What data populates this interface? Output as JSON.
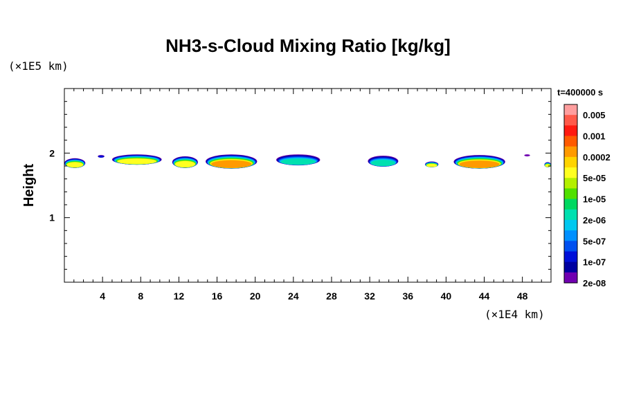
{
  "chart_data": {
    "type": "heatmap",
    "title": "NH3-s-Cloud Mixing Ratio [kg/kg]",
    "xlabel": "",
    "ylabel": "Height",
    "x_unit": "(×1E4 km)",
    "y_unit": "(×1E5 km)",
    "time_label": "t=400000 s",
    "xlim": [
      0,
      51
    ],
    "ylim": [
      0,
      3
    ],
    "x_ticks": [
      4,
      8,
      12,
      16,
      20,
      24,
      28,
      32,
      36,
      40,
      44,
      48
    ],
    "y_ticks": [
      1,
      2
    ],
    "colorbar": {
      "labels": [
        "0.005",
        "0.001",
        "0.0002",
        "5e-05",
        "1e-05",
        "2e-06",
        "5e-07",
        "1e-07",
        "2e-08"
      ],
      "colors": [
        "#ff9e9e",
        "#ff5a4a",
        "#ff1a10",
        "#ff5a00",
        "#ff9a00",
        "#ffd400",
        "#ffff20",
        "#b4f000",
        "#50e000",
        "#00d860",
        "#00e0b0",
        "#00c8f0",
        "#0090ff",
        "#0050f0",
        "#0010d8",
        "#0000a0",
        "#7000b0"
      ]
    },
    "cloud_patches": [
      {
        "x": [
          0,
          2.2
        ],
        "y": [
          1.77,
          1.92
        ],
        "max": 5e-05
      },
      {
        "x": [
          3.5,
          4.2
        ],
        "y": [
          1.93,
          1.97
        ],
        "max": 1e-07
      },
      {
        "x": [
          5,
          10.2
        ],
        "y": [
          1.82,
          1.98
        ],
        "max": 5e-05
      },
      {
        "x": [
          11.3,
          14
        ],
        "y": [
          1.77,
          1.95
        ],
        "max": 5e-05
      },
      {
        "x": [
          14.8,
          20.2
        ],
        "y": [
          1.76,
          1.98
        ],
        "max": 0.0002
      },
      {
        "x": [
          22.2,
          26.8
        ],
        "y": [
          1.81,
          1.98
        ],
        "max": 2e-06
      },
      {
        "x": [
          31.8,
          35
        ],
        "y": [
          1.79,
          1.96
        ],
        "max": 2e-06
      },
      {
        "x": [
          37.8,
          39.2
        ],
        "y": [
          1.78,
          1.87
        ],
        "max": 5e-05
      },
      {
        "x": [
          40.8,
          46.2
        ],
        "y": [
          1.76,
          1.97
        ],
        "max": 0.0002
      },
      {
        "x": [
          48.2,
          48.8
        ],
        "y": [
          1.95,
          1.98
        ],
        "max": 2e-08
      },
      {
        "x": [
          50.3,
          51
        ],
        "y": [
          1.78,
          1.86
        ],
        "max": 5e-05
      }
    ]
  }
}
